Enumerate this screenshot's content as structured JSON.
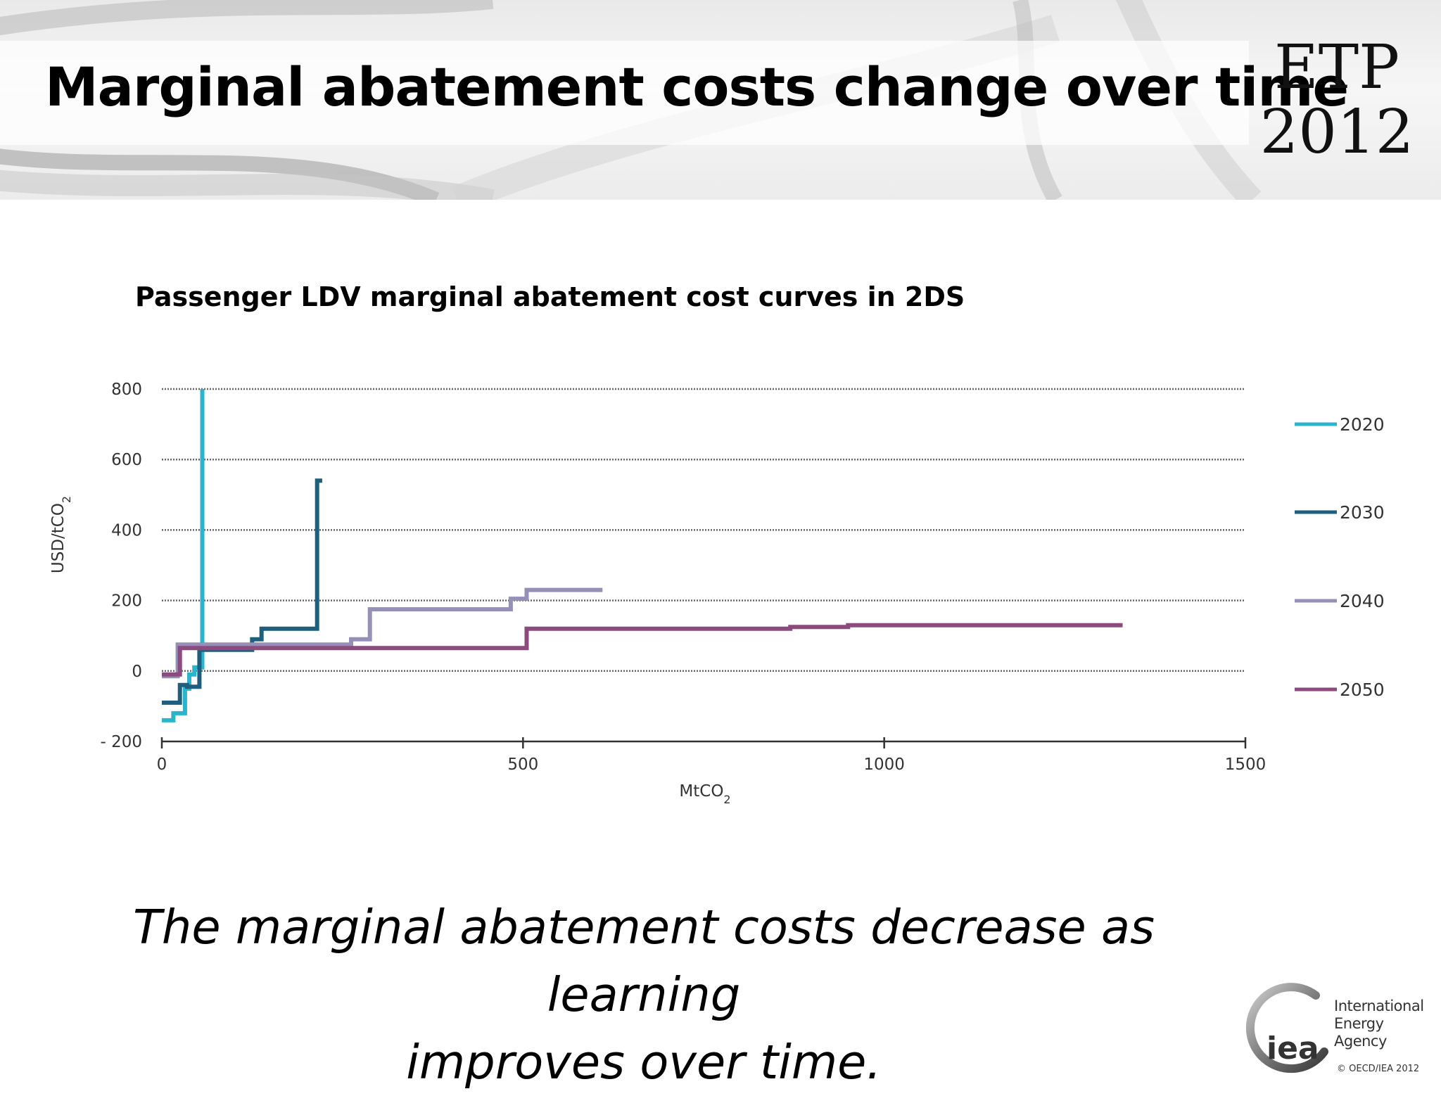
{
  "slide": {
    "title": "Marginal abatement costs change over time",
    "caption_line1": "The marginal abatement costs decrease as learning",
    "caption_line2": "improves over time."
  },
  "logos": {
    "etp_line1": "ETP",
    "etp_line2": "2012",
    "iea_mark": "iea",
    "iea_name_line1": "International",
    "iea_name_line2": "Energy Agency",
    "copyright": "© OECD/IEA 2012"
  },
  "colors": {
    "2020": "#2bb5cc",
    "2030": "#1e5f7e",
    "2040": "#9490b8",
    "2050": "#8c4a7e",
    "gridline": "#666666",
    "axis": "#333333"
  },
  "chart_data": {
    "type": "line",
    "step": true,
    "title": "Passenger LDV marginal abatement cost curves in 2DS",
    "xlabel": "MtCO2",
    "ylabel": "USD/tCO2",
    "xlim": [
      0,
      1500
    ],
    "ylim": [
      -200,
      800
    ],
    "xticks": [
      0,
      500,
      1000,
      1500
    ],
    "xtick_labels": [
      "0",
      "500",
      "1000",
      "1500"
    ],
    "yticks": [
      800,
      600,
      400,
      200,
      0,
      -200
    ],
    "ytick_labels": [
      "800",
      "600",
      "400",
      "200",
      "0",
      "- 200"
    ],
    "grid": "horizontal dotted",
    "legend_position": "right",
    "series": [
      {
        "name": "2020",
        "x": [
          0,
          16,
          16,
          32,
          32,
          38,
          38,
          45,
          45,
          56,
          56
        ],
        "y": [
          -140,
          -140,
          -120,
          -120,
          -50,
          -50,
          -10,
          -10,
          10,
          10,
          800
        ]
      },
      {
        "name": "2030",
        "x": [
          0,
          25,
          25,
          35,
          35,
          52,
          52,
          125,
          125,
          138,
          138,
          215,
          215,
          222
        ],
        "y": [
          -90,
          -90,
          -40,
          -40,
          -45,
          -45,
          60,
          60,
          90,
          90,
          120,
          120,
          540,
          540
        ]
      },
      {
        "name": "2040",
        "x": [
          0,
          22,
          22,
          262,
          262,
          288,
          288,
          483,
          483,
          505,
          505,
          610
        ],
        "y": [
          -15,
          -15,
          75,
          75,
          90,
          90,
          175,
          175,
          205,
          205,
          230,
          230
        ]
      },
      {
        "name": "2050",
        "x": [
          0,
          25,
          25,
          505,
          505,
          530,
          530,
          870,
          870,
          950,
          950,
          1330
        ],
        "y": [
          -10,
          -10,
          65,
          65,
          120,
          120,
          120,
          120,
          125,
          125,
          130,
          130
        ]
      }
    ]
  }
}
